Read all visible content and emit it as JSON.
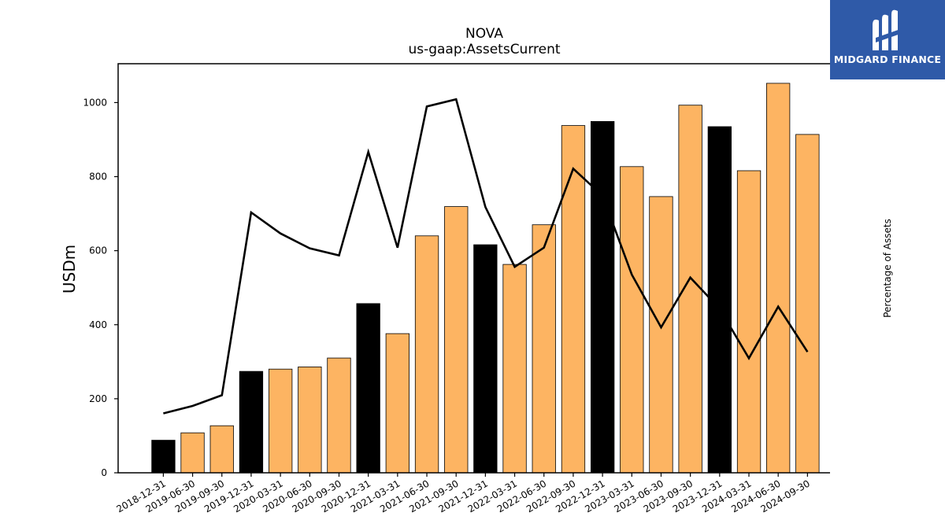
{
  "logo": {
    "text": "MIDGARD FINANCE",
    "icon": "midgard-m-logo-icon",
    "bg_color": "#2f5aa8"
  },
  "chart_data": {
    "type": "bar",
    "title": "NOVA",
    "subtitle": "us-gaap:AssetsCurrent",
    "ylabel": "USDm",
    "y2label": "Percentage of Assets",
    "ylim": [
      0,
      1105
    ],
    "y2lim": [
      3.7,
      15.2
    ],
    "yticks": [
      0,
      200,
      400,
      600,
      800,
      1000
    ],
    "y2ticks": [
      4,
      6,
      8,
      10,
      12,
      14
    ],
    "grid": false,
    "categories": [
      "2018-12-31",
      "2019-06-30",
      "2019-09-30",
      "2019-12-31",
      "2020-03-31",
      "2020-06-30",
      "2020-09-30",
      "2020-12-31",
      "2021-03-31",
      "2021-06-30",
      "2021-09-30",
      "2021-12-31",
      "2022-03-31",
      "2022-06-30",
      "2022-09-30",
      "2022-12-31",
      "2023-03-31",
      "2023-06-30",
      "2023-09-30",
      "2023-12-31",
      "2024-03-31",
      "2024-06-30",
      "2024-09-30"
    ],
    "series": [
      {
        "type": "bar",
        "values": [
          88,
          108,
          127,
          274,
          280,
          286,
          310,
          457,
          376,
          640,
          719,
          616,
          563,
          670,
          938,
          949,
          827,
          746,
          993,
          935,
          816,
          1052,
          914
        ],
        "highlight": [
          true,
          false,
          false,
          true,
          false,
          false,
          false,
          true,
          false,
          false,
          false,
          true,
          false,
          false,
          false,
          true,
          false,
          false,
          false,
          true,
          false,
          false,
          false
        ],
        "color": "#fdb462",
        "highlight_color": "#000000"
      },
      {
        "type": "line",
        "axis": "right",
        "values": [
          5.37,
          5.58,
          5.88,
          11.02,
          10.43,
          10.01,
          9.81,
          12.72,
          10.03,
          14.0,
          14.2,
          11.17,
          9.49,
          10.03,
          12.25,
          11.49,
          9.27,
          7.79,
          9.19,
          8.31,
          6.92,
          8.37,
          7.1
        ],
        "color": "#000000"
      }
    ]
  }
}
